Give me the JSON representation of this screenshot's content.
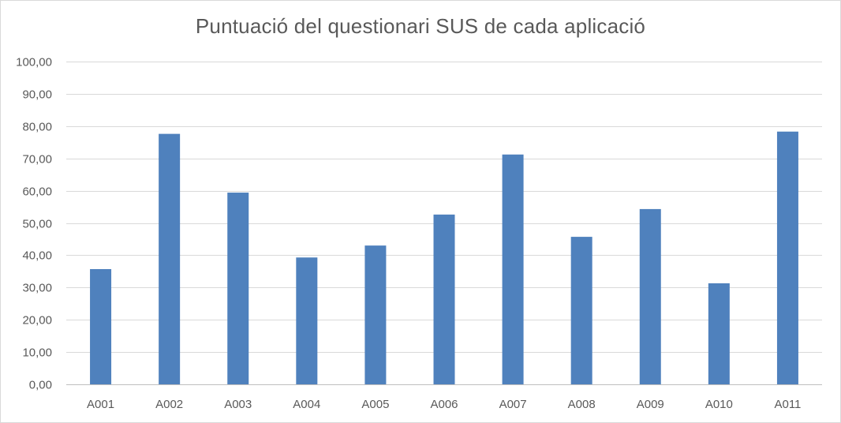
{
  "chart_data": {
    "type": "bar",
    "title": "Puntuació del questionari SUS de cada aplicació",
    "xlabel": "",
    "ylabel": "",
    "categories": [
      "A001",
      "A002",
      "A003",
      "A004",
      "A005",
      "A006",
      "A007",
      "A008",
      "A009",
      "A010",
      "A011"
    ],
    "series": [
      {
        "values": [
          35.7,
          77.6,
          59.4,
          39.3,
          43.0,
          52.6,
          71.2,
          45.7,
          54.3,
          31.3,
          78.3
        ]
      }
    ],
    "ylim": [
      0,
      100
    ],
    "yticks": [
      0,
      10,
      20,
      30,
      40,
      50,
      60,
      70,
      80,
      90,
      100
    ],
    "ytick_labels": [
      "0,00",
      "10,00",
      "20,00",
      "30,00",
      "40,00",
      "50,00",
      "60,00",
      "70,00",
      "80,00",
      "90,00",
      "100,00"
    ],
    "grid": true,
    "legend": "none",
    "colors": {
      "bar": "#4f81bd",
      "grid": "#d9d9d9",
      "axis": "#bfbfbf",
      "text": "#595959"
    }
  }
}
